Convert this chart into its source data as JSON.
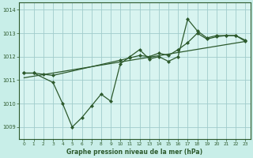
{
  "title": "Graphe pression niveau de la mer (hPa)",
  "bg_color": "#c8eee8",
  "plot_bg_color": "#d8f4f0",
  "grid_color": "#a0cccc",
  "line_color": "#2d5a2d",
  "xlim": [
    -0.5,
    23.5
  ],
  "ylim": [
    1008.5,
    1014.3
  ],
  "yticks": [
    1009,
    1010,
    1011,
    1012,
    1013,
    1014
  ],
  "xticks": [
    0,
    1,
    2,
    3,
    4,
    5,
    6,
    7,
    8,
    9,
    10,
    11,
    12,
    13,
    14,
    15,
    16,
    17,
    18,
    19,
    20,
    21,
    22,
    23
  ],
  "series1_x": [
    0,
    1,
    3,
    4,
    5,
    6,
    7,
    8,
    9,
    10,
    11,
    12,
    13,
    14,
    15,
    16,
    17,
    18,
    19,
    20,
    21,
    22,
    23
  ],
  "series1_y": [
    1011.3,
    1011.3,
    1010.9,
    1010.0,
    1009.0,
    1009.4,
    1009.9,
    1010.4,
    1010.1,
    1011.7,
    1012.0,
    1012.3,
    1011.9,
    1012.0,
    1011.8,
    1012.0,
    1013.6,
    1013.1,
    1012.8,
    1012.9,
    1012.9,
    1012.9,
    1012.7
  ],
  "series2_x": [
    0,
    1,
    2,
    3,
    10,
    11,
    12,
    13,
    14,
    15,
    16,
    17,
    18,
    19,
    20,
    21,
    22,
    23
  ],
  "series2_y": [
    1011.3,
    1011.3,
    1011.25,
    1011.2,
    1011.85,
    1011.95,
    1012.05,
    1012.0,
    1012.15,
    1012.05,
    1012.3,
    1012.6,
    1013.0,
    1012.75,
    1012.85,
    1012.9,
    1012.9,
    1012.65
  ],
  "trend_x": [
    0,
    23
  ],
  "trend_y": [
    1011.1,
    1012.65
  ]
}
